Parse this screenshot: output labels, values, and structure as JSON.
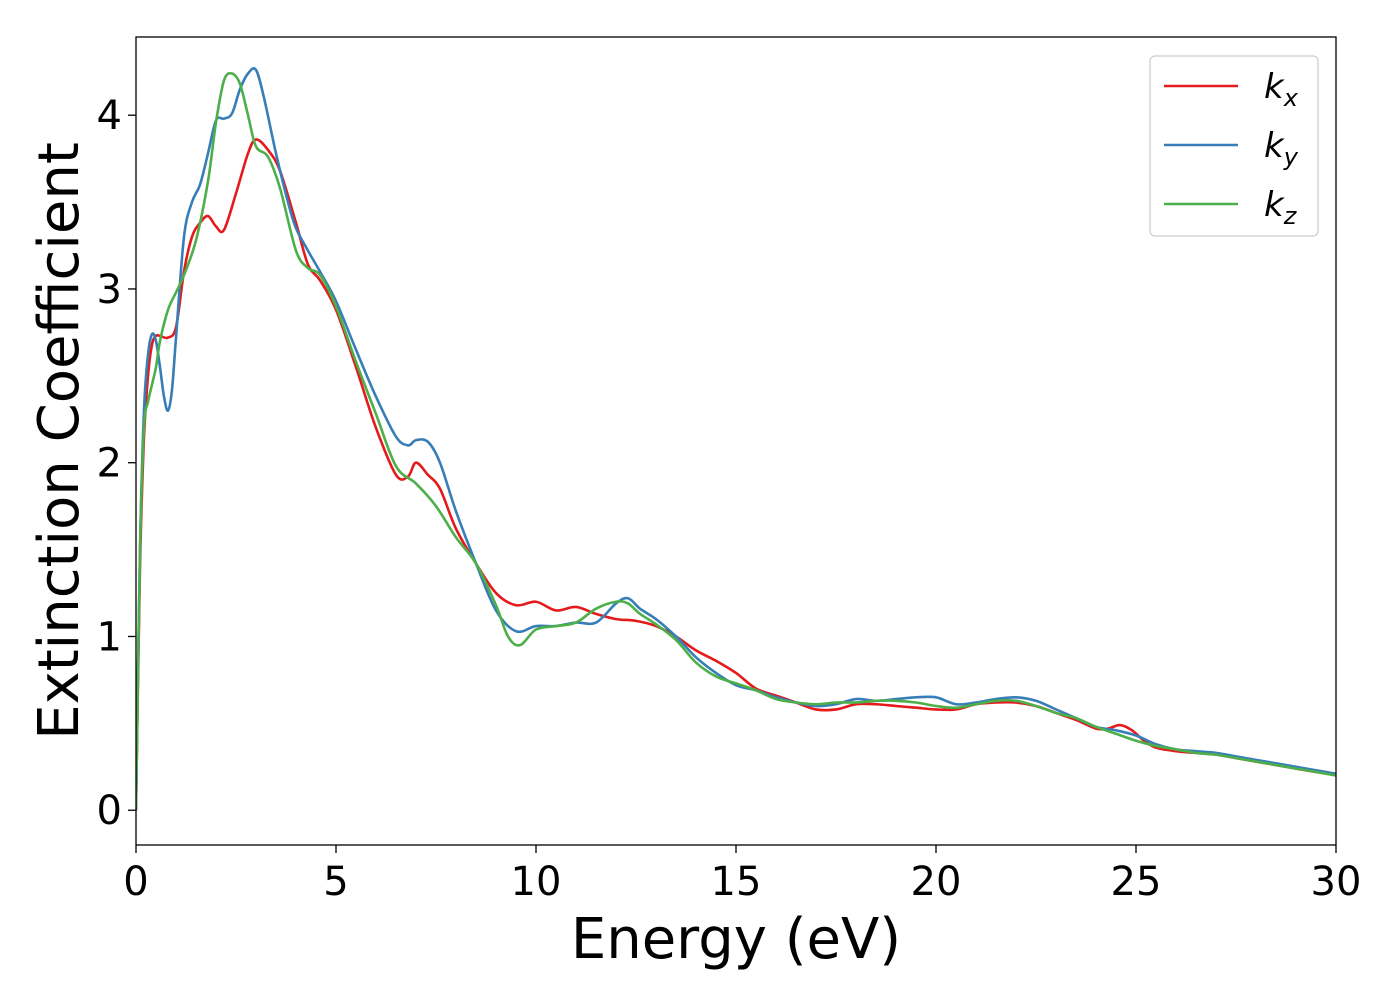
{
  "chart_data": {
    "type": "line",
    "title": "",
    "xlabel": "Energy (eV)",
    "ylabel": "Extinction Coefficient",
    "xlim": [
      0,
      30
    ],
    "ylim": [
      -0.2,
      4.45
    ],
    "xticks": [
      0,
      5,
      10,
      15,
      20,
      25,
      30
    ],
    "yticks": [
      0,
      1,
      2,
      3,
      4
    ],
    "grid": false,
    "legend": {
      "placement": "top-right"
    },
    "series": [
      {
        "name": "k_x",
        "label_main": "k",
        "label_sub": "x",
        "color": "#e41a1c",
        "x": [
          0,
          0.1,
          0.2,
          0.3,
          0.4,
          0.5,
          0.6,
          0.8,
          1.0,
          1.2,
          1.4,
          1.6,
          1.8,
          2.0,
          2.2,
          2.5,
          2.8,
          3.0,
          3.3,
          3.6,
          4.0,
          4.3,
          4.6,
          5.0,
          5.5,
          6.0,
          6.5,
          6.8,
          7.0,
          7.3,
          7.6,
          8.0,
          8.5,
          9.0,
          9.5,
          10.0,
          10.5,
          11.0,
          11.5,
          12.0,
          12.5,
          13.0,
          13.5,
          14.0,
          14.5,
          15.0,
          15.5,
          16.0,
          16.5,
          17.0,
          17.5,
          18.0,
          18.5,
          19.0,
          19.5,
          20.0,
          20.5,
          21.0,
          21.5,
          22.0,
          22.5,
          23.0,
          23.5,
          24.0,
          24.3,
          24.6,
          24.9,
          25.2,
          25.5,
          26.0,
          26.5,
          27.0,
          27.5,
          28.0,
          28.5,
          29.0,
          29.5,
          30.0
        ],
        "values": [
          0.0,
          1.4,
          2.15,
          2.5,
          2.68,
          2.73,
          2.73,
          2.72,
          2.78,
          3.1,
          3.3,
          3.38,
          3.42,
          3.36,
          3.34,
          3.55,
          3.78,
          3.86,
          3.8,
          3.68,
          3.38,
          3.14,
          3.05,
          2.88,
          2.55,
          2.2,
          1.93,
          1.92,
          2.0,
          1.93,
          1.85,
          1.62,
          1.42,
          1.25,
          1.18,
          1.2,
          1.15,
          1.17,
          1.13,
          1.1,
          1.09,
          1.06,
          1.0,
          0.92,
          0.86,
          0.79,
          0.7,
          0.66,
          0.62,
          0.58,
          0.58,
          0.61,
          0.61,
          0.6,
          0.59,
          0.58,
          0.58,
          0.61,
          0.62,
          0.62,
          0.6,
          0.56,
          0.52,
          0.47,
          0.47,
          0.49,
          0.46,
          0.4,
          0.36,
          0.34,
          0.33,
          0.32,
          0.3,
          0.28,
          0.26,
          0.24,
          0.22,
          0.21
        ]
      },
      {
        "name": "k_y",
        "label_main": "k",
        "label_sub": "y",
        "color": "#377eb8",
        "x": [
          0,
          0.1,
          0.2,
          0.3,
          0.4,
          0.5,
          0.6,
          0.7,
          0.8,
          0.9,
          1.0,
          1.2,
          1.4,
          1.6,
          1.8,
          2.0,
          2.2,
          2.4,
          2.6,
          2.8,
          3.0,
          3.2,
          3.5,
          3.8,
          4.0,
          4.3,
          4.6,
          5.0,
          5.5,
          6.0,
          6.5,
          6.8,
          7.0,
          7.3,
          7.6,
          8.0,
          8.5,
          9.0,
          9.5,
          10.0,
          10.5,
          11.0,
          11.5,
          12.0,
          12.3,
          12.6,
          13.0,
          13.5,
          14.0,
          14.5,
          15.0,
          15.5,
          16.0,
          16.5,
          17.0,
          17.5,
          18.0,
          18.5,
          19.0,
          19.5,
          20.0,
          20.5,
          21.0,
          21.5,
          22.0,
          22.5,
          23.0,
          23.5,
          24.0,
          24.5,
          25.0,
          25.5,
          26.0,
          26.5,
          27.0,
          27.5,
          28.0,
          28.5,
          29.0,
          29.5,
          30.0
        ],
        "values": [
          0.0,
          1.5,
          2.3,
          2.62,
          2.74,
          2.7,
          2.55,
          2.38,
          2.3,
          2.42,
          2.72,
          3.3,
          3.5,
          3.6,
          3.78,
          3.97,
          3.98,
          4.01,
          4.15,
          4.24,
          4.26,
          4.1,
          3.78,
          3.5,
          3.35,
          3.22,
          3.1,
          2.93,
          2.65,
          2.38,
          2.15,
          2.1,
          2.13,
          2.12,
          2.0,
          1.72,
          1.42,
          1.15,
          1.03,
          1.06,
          1.06,
          1.08,
          1.08,
          1.19,
          1.22,
          1.16,
          1.1,
          1.0,
          0.88,
          0.79,
          0.72,
          0.69,
          0.65,
          0.62,
          0.6,
          0.61,
          0.64,
          0.63,
          0.64,
          0.65,
          0.65,
          0.61,
          0.62,
          0.64,
          0.65,
          0.63,
          0.58,
          0.53,
          0.48,
          0.46,
          0.43,
          0.38,
          0.35,
          0.34,
          0.33,
          0.31,
          0.29,
          0.27,
          0.25,
          0.23,
          0.21
        ]
      },
      {
        "name": "k_z",
        "label_main": "k",
        "label_sub": "z",
        "color": "#4daf4a",
        "x": [
          0,
          0.1,
          0.2,
          0.3,
          0.4,
          0.5,
          0.6,
          0.8,
          1.0,
          1.2,
          1.5,
          1.8,
          2.0,
          2.2,
          2.4,
          2.6,
          2.8,
          3.0,
          3.3,
          3.6,
          4.0,
          4.3,
          4.6,
          5.0,
          5.5,
          6.0,
          6.5,
          7.0,
          7.5,
          8.0,
          8.5,
          9.0,
          9.3,
          9.6,
          10.0,
          10.5,
          11.0,
          11.5,
          12.0,
          12.3,
          12.6,
          13.0,
          13.5,
          14.0,
          14.5,
          15.0,
          15.5,
          16.0,
          16.5,
          17.0,
          17.5,
          18.0,
          18.5,
          19.0,
          19.5,
          20.0,
          20.5,
          21.0,
          21.5,
          22.0,
          22.5,
          23.0,
          23.5,
          24.0,
          24.5,
          25.0,
          25.5,
          26.0,
          26.5,
          27.0,
          27.5,
          28.0,
          28.5,
          29.0,
          29.5,
          30.0
        ],
        "values": [
          0.0,
          1.5,
          2.2,
          2.35,
          2.45,
          2.55,
          2.7,
          2.88,
          2.98,
          3.08,
          3.28,
          3.62,
          3.96,
          4.2,
          4.24,
          4.18,
          4.0,
          3.82,
          3.76,
          3.58,
          3.22,
          3.12,
          3.08,
          2.9,
          2.58,
          2.28,
          1.98,
          1.88,
          1.75,
          1.57,
          1.42,
          1.18,
          1.0,
          0.95,
          1.04,
          1.06,
          1.08,
          1.16,
          1.2,
          1.19,
          1.13,
          1.07,
          0.98,
          0.85,
          0.77,
          0.73,
          0.69,
          0.64,
          0.62,
          0.61,
          0.62,
          0.62,
          0.63,
          0.63,
          0.62,
          0.6,
          0.59,
          0.61,
          0.63,
          0.63,
          0.6,
          0.56,
          0.53,
          0.48,
          0.44,
          0.4,
          0.37,
          0.35,
          0.33,
          0.32,
          0.3,
          0.28,
          0.26,
          0.24,
          0.22,
          0.2
        ]
      }
    ]
  }
}
